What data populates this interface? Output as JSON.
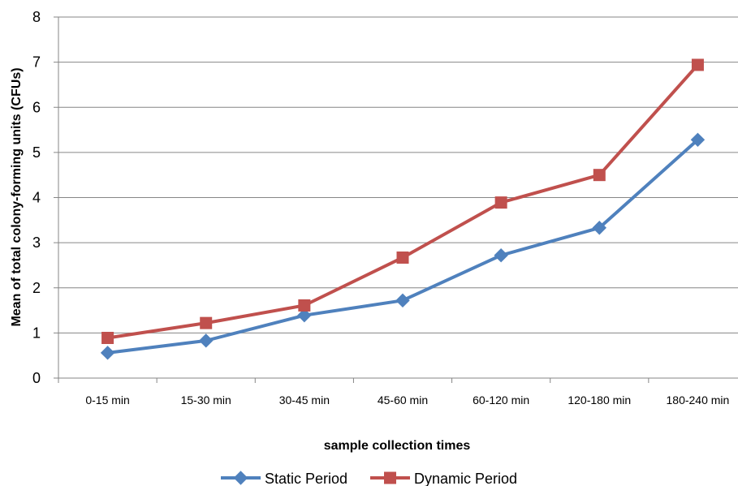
{
  "chart_data": {
    "type": "line",
    "categories": [
      "0-15 min",
      "15-30 min",
      "30-45 min",
      "45-60 min",
      "60-120 min",
      "120-180 min",
      "180-240 min"
    ],
    "series": [
      {
        "name": "Static Period",
        "color": "#4F81BD",
        "marker": "diamond",
        "values": [
          0.56,
          0.83,
          1.39,
          1.72,
          2.72,
          3.33,
          5.28
        ]
      },
      {
        "name": "Dynamic Period",
        "color": "#C0504D",
        "marker": "square",
        "values": [
          0.89,
          1.22,
          1.61,
          2.67,
          3.89,
          4.5,
          6.94
        ]
      }
    ],
    "title": "",
    "xlabel": "sample collection times",
    "ylabel": "Mean of total colony-forming units (CFUs)",
    "ylim": [
      0,
      8
    ],
    "yticks": [
      "0",
      "1",
      "2",
      "3",
      "4",
      "5",
      "6",
      "7",
      "8"
    ],
    "grid": "horizontal",
    "legend_position": "bottom"
  }
}
